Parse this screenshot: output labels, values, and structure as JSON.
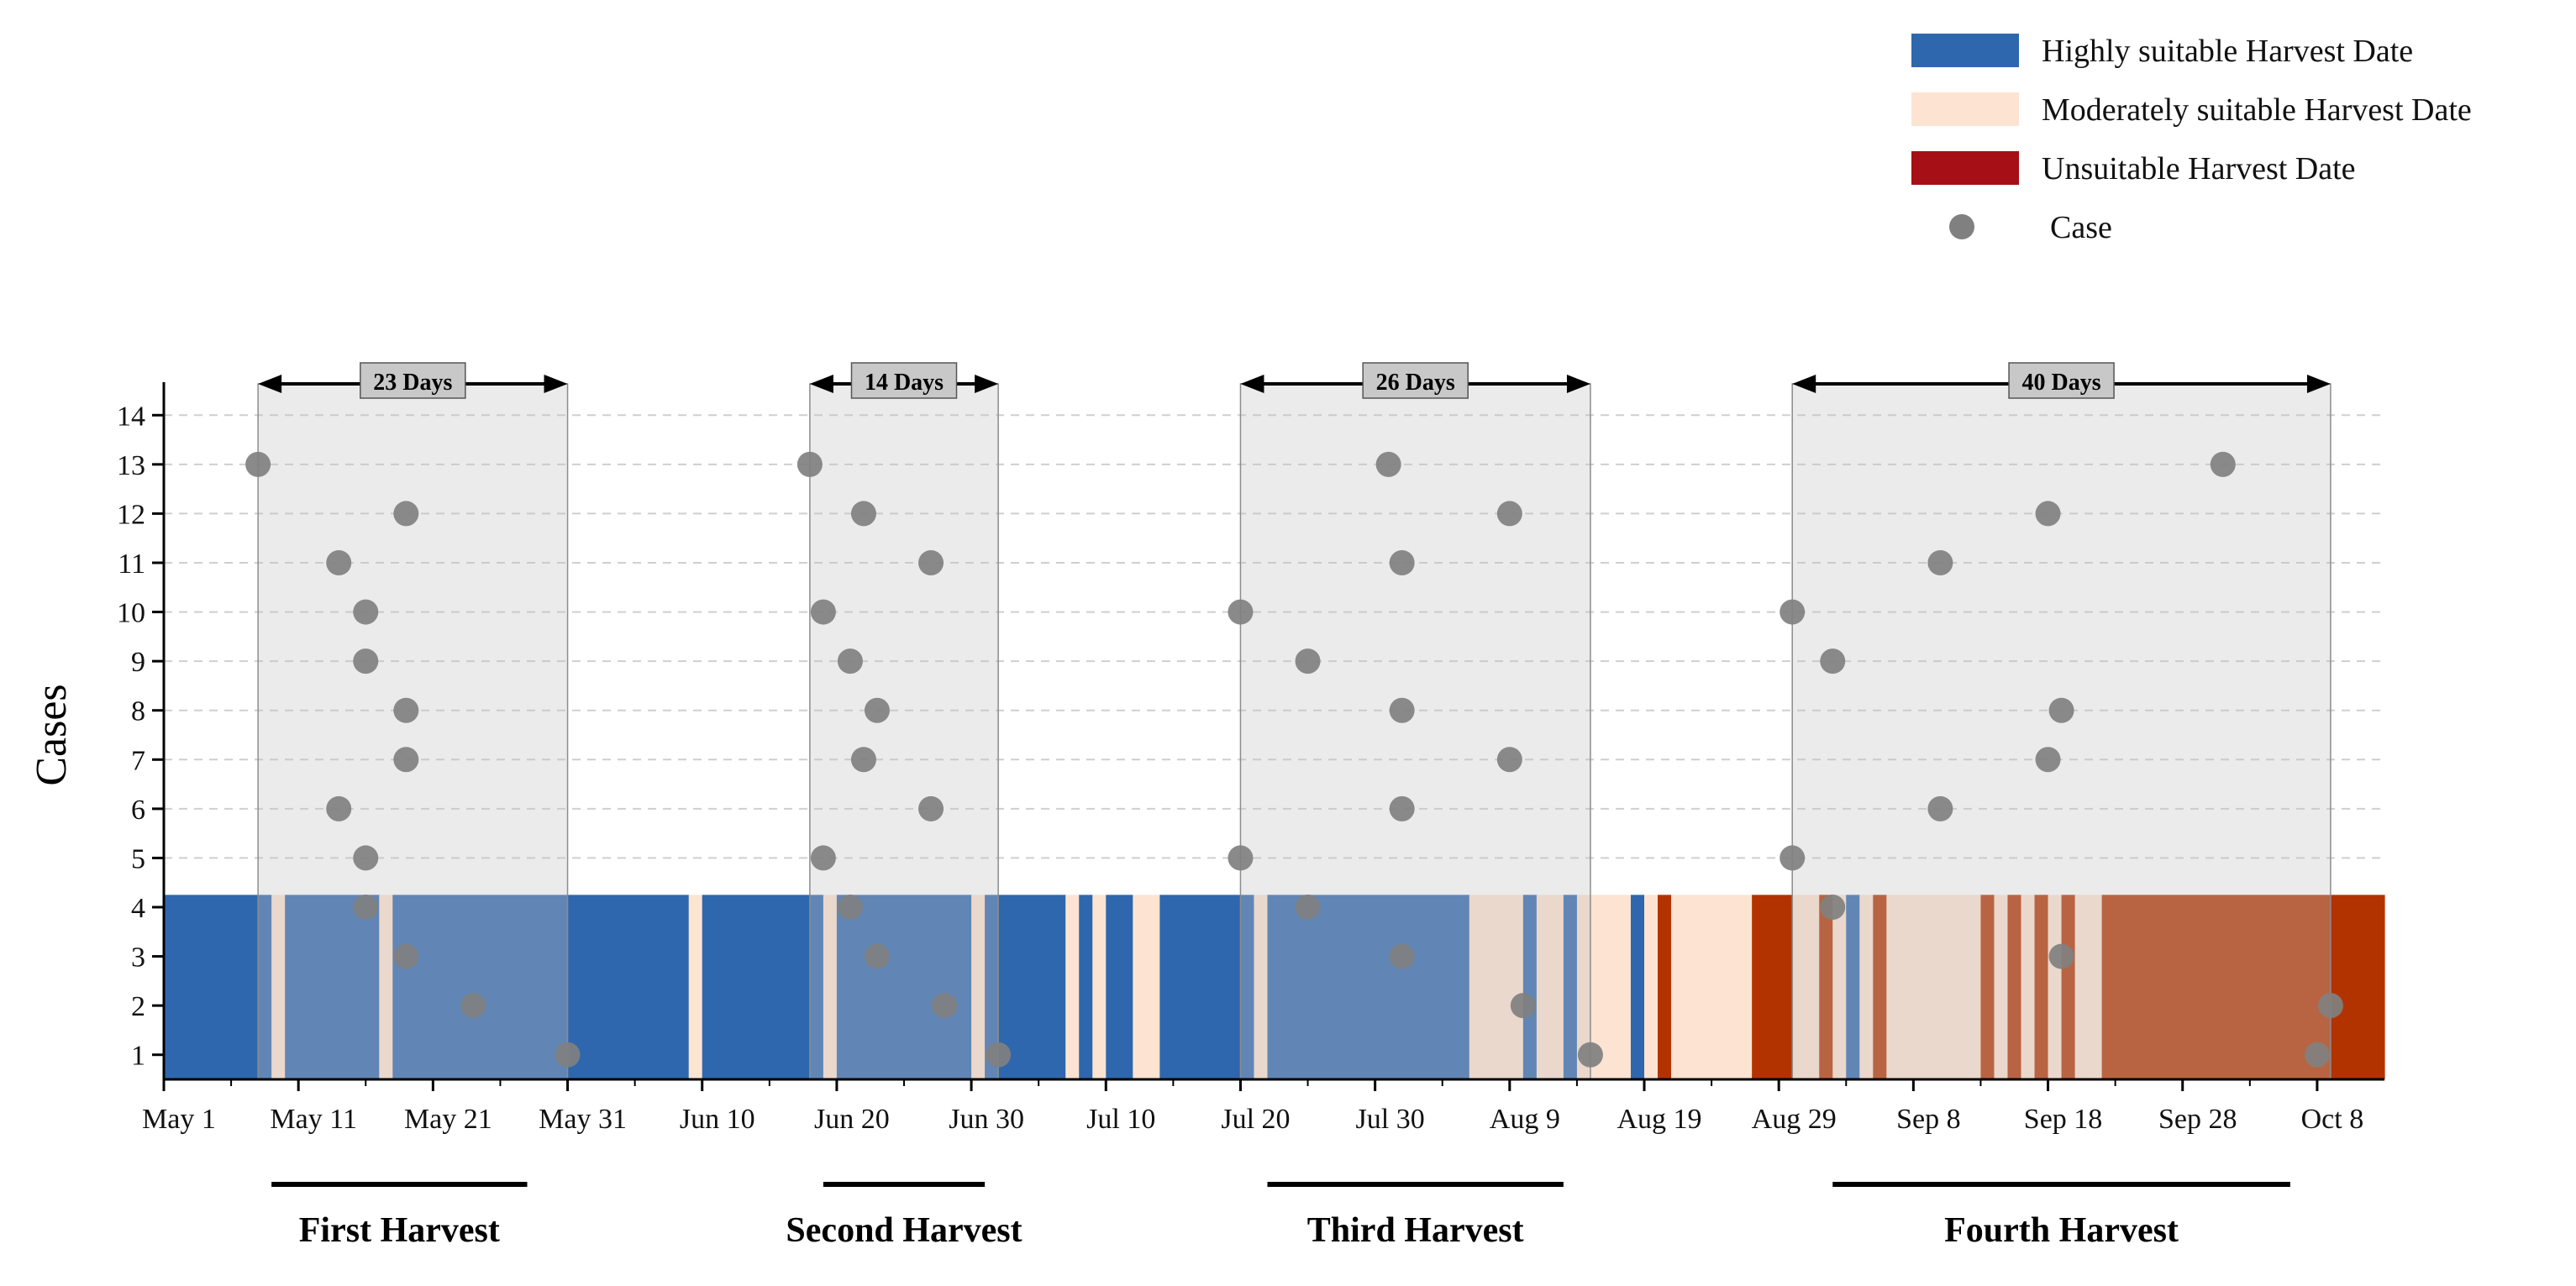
{
  "chart_data": {
    "type": "scatter",
    "ylabel": "Cases",
    "xlabel": "",
    "ylim": [
      0.5,
      14.5
    ],
    "yticks": [
      1,
      2,
      3,
      4,
      5,
      6,
      7,
      8,
      9,
      10,
      11,
      12,
      13,
      14
    ],
    "x_axis": {
      "start": "May 1",
      "end": "Oct 13",
      "tick_labels": [
        "May 1",
        "May 11",
        "May 21",
        "May 31",
        "Jun 10",
        "Jun 20",
        "Jun 30",
        "Jul 10",
        "Jul 20",
        "Jul 30",
        "Aug 9",
        "Aug 19",
        "Aug 29",
        "Sep 8",
        "Sep 18",
        "Sep 28",
        "Oct 8"
      ]
    },
    "grid": "horizontal dashed",
    "legend": {
      "placement": "top-right",
      "entries": [
        {
          "label": "Highly suitable Harvest Date",
          "color": "#2e67ad",
          "symbol": "rect"
        },
        {
          "label": "Moderately suitable Harvest Date",
          "color": "#fde3d1",
          "symbol": "rect"
        },
        {
          "label": "Unsuitable Harvest Date",
          "color": "#a50f15",
          "symbol": "rect"
        },
        {
          "label": "Case",
          "color": "#808080",
          "symbol": "circle"
        }
      ]
    },
    "suitability_strip": {
      "y_top": 4.25,
      "colors": {
        "high": "#2e67ad",
        "moderate": "#fde3d1",
        "unsuitable": "#b23300"
      },
      "segments": [
        {
          "start": "May 1",
          "end": "May 9",
          "class": "high"
        },
        {
          "start": "May 9",
          "end": "May 10",
          "class": "moderate"
        },
        {
          "start": "May 10",
          "end": "May 17",
          "class": "high"
        },
        {
          "start": "May 17",
          "end": "May 18",
          "class": "moderate"
        },
        {
          "start": "May 18",
          "end": "Jun 9",
          "class": "high"
        },
        {
          "start": "Jun 9",
          "end": "Jun 10",
          "class": "moderate"
        },
        {
          "start": "Jun 10",
          "end": "Jun 19",
          "class": "high"
        },
        {
          "start": "Jun 19",
          "end": "Jun 20",
          "class": "moderate"
        },
        {
          "start": "Jun 20",
          "end": "Jun 30",
          "class": "high"
        },
        {
          "start": "Jun 30",
          "end": "Jul 1",
          "class": "moderate"
        },
        {
          "start": "Jul 1",
          "end": "Jul 7",
          "class": "high"
        },
        {
          "start": "Jul 7",
          "end": "Jul 8",
          "class": "moderate"
        },
        {
          "start": "Jul 8",
          "end": "Jul 9",
          "class": "high"
        },
        {
          "start": "Jul 9",
          "end": "Jul 10",
          "class": "moderate"
        },
        {
          "start": "Jul 10",
          "end": "Jul 12",
          "class": "high"
        },
        {
          "start": "Jul 12",
          "end": "Jul 14",
          "class": "moderate"
        },
        {
          "start": "Jul 14",
          "end": "Jul 21",
          "class": "high"
        },
        {
          "start": "Jul 21",
          "end": "Jul 22",
          "class": "moderate"
        },
        {
          "start": "Jul 22",
          "end": "Aug 6",
          "class": "high"
        },
        {
          "start": "Aug 6",
          "end": "Aug 10",
          "class": "moderate"
        },
        {
          "start": "Aug 10",
          "end": "Aug 11",
          "class": "high"
        },
        {
          "start": "Aug 11",
          "end": "Aug 13",
          "class": "moderate"
        },
        {
          "start": "Aug 13",
          "end": "Aug 14",
          "class": "high"
        },
        {
          "start": "Aug 14",
          "end": "Aug 18",
          "class": "moderate"
        },
        {
          "start": "Aug 18",
          "end": "Aug 19",
          "class": "high"
        },
        {
          "start": "Aug 19",
          "end": "Aug 20",
          "class": "moderate"
        },
        {
          "start": "Aug 20",
          "end": "Aug 21",
          "class": "unsuitable"
        },
        {
          "start": "Aug 21",
          "end": "Aug 27",
          "class": "moderate"
        },
        {
          "start": "Aug 27",
          "end": "Aug 30",
          "class": "unsuitable"
        },
        {
          "start": "Aug 30",
          "end": "Sep 1",
          "class": "moderate"
        },
        {
          "start": "Sep 1",
          "end": "Sep 2",
          "class": "unsuitable"
        },
        {
          "start": "Sep 2",
          "end": "Sep 3",
          "class": "moderate"
        },
        {
          "start": "Sep 3",
          "end": "Sep 4",
          "class": "high"
        },
        {
          "start": "Sep 4",
          "end": "Sep 5",
          "class": "moderate"
        },
        {
          "start": "Sep 5",
          "end": "Sep 6",
          "class": "unsuitable"
        },
        {
          "start": "Sep 6",
          "end": "Sep 13",
          "class": "moderate"
        },
        {
          "start": "Sep 13",
          "end": "Sep 14",
          "class": "unsuitable"
        },
        {
          "start": "Sep 14",
          "end": "Sep 15",
          "class": "moderate"
        },
        {
          "start": "Sep 15",
          "end": "Sep 16",
          "class": "unsuitable"
        },
        {
          "start": "Sep 16",
          "end": "Sep 17",
          "class": "moderate"
        },
        {
          "start": "Sep 17",
          "end": "Sep 18",
          "class": "unsuitable"
        },
        {
          "start": "Sep 18",
          "end": "Sep 19",
          "class": "moderate"
        },
        {
          "start": "Sep 19",
          "end": "Sep 20",
          "class": "unsuitable"
        },
        {
          "start": "Sep 20",
          "end": "Sep 22",
          "class": "moderate"
        },
        {
          "start": "Sep 22",
          "end": "Oct 13",
          "class": "unsuitable"
        }
      ]
    },
    "harvest_windows": [
      {
        "start": "May 8",
        "end": "May 31",
        "duration_label": "23 Days",
        "name": "First Harvest",
        "underline": [
          "May 9",
          "May 28"
        ]
      },
      {
        "start": "Jun 18",
        "end": "Jul 2",
        "duration_label": "14 Days",
        "name": "Second Harvest",
        "underline": [
          "Jun 19",
          "Jul 1"
        ]
      },
      {
        "start": "Jul 20",
        "end": "Aug 15",
        "duration_label": "26 Days",
        "name": "Third Harvest",
        "underline": [
          "Jul 22",
          "Aug 13"
        ]
      },
      {
        "start": "Aug 30",
        "end": "Oct 9",
        "duration_label": "40 Days",
        "name": "Fourth Harvest",
        "underline": [
          "Sep 2",
          "Oct 6"
        ]
      }
    ],
    "series": [
      {
        "name": "Case",
        "points": [
          {
            "x": "May 8",
            "y": 13
          },
          {
            "x": "May 14",
            "y": 11
          },
          {
            "x": "May 14",
            "y": 6
          },
          {
            "x": "May 16",
            "y": 10
          },
          {
            "x": "May 16",
            "y": 9
          },
          {
            "x": "May 16",
            "y": 5
          },
          {
            "x": "May 16",
            "y": 4
          },
          {
            "x": "May 19",
            "y": 12
          },
          {
            "x": "May 19",
            "y": 8
          },
          {
            "x": "May 19",
            "y": 7
          },
          {
            "x": "May 19",
            "y": 3
          },
          {
            "x": "May 24",
            "y": 2
          },
          {
            "x": "May 31",
            "y": 1
          },
          {
            "x": "Jun 18",
            "y": 13
          },
          {
            "x": "Jun 19",
            "y": 10
          },
          {
            "x": "Jun 19",
            "y": 5
          },
          {
            "x": "Jun 21",
            "y": 9
          },
          {
            "x": "Jun 21",
            "y": 4
          },
          {
            "x": "Jun 22",
            "y": 12
          },
          {
            "x": "Jun 22",
            "y": 7
          },
          {
            "x": "Jun 23",
            "y": 8
          },
          {
            "x": "Jun 23",
            "y": 3
          },
          {
            "x": "Jun 27",
            "y": 11
          },
          {
            "x": "Jun 27",
            "y": 6
          },
          {
            "x": "Jun 28",
            "y": 2
          },
          {
            "x": "Jul 2",
            "y": 1
          },
          {
            "x": "Jul 20",
            "y": 10
          },
          {
            "x": "Jul 20",
            "y": 5
          },
          {
            "x": "Jul 25",
            "y": 9
          },
          {
            "x": "Jul 25",
            "y": 4
          },
          {
            "x": "Jul 31",
            "y": 13
          },
          {
            "x": "Aug 1",
            "y": 11
          },
          {
            "x": "Aug 1",
            "y": 8
          },
          {
            "x": "Aug 1",
            "y": 6
          },
          {
            "x": "Aug 1",
            "y": 3
          },
          {
            "x": "Aug 9",
            "y": 12
          },
          {
            "x": "Aug 9",
            "y": 7
          },
          {
            "x": "Aug 10",
            "y": 2
          },
          {
            "x": "Aug 15",
            "y": 1
          },
          {
            "x": "Aug 30",
            "y": 10
          },
          {
            "x": "Aug 30",
            "y": 5
          },
          {
            "x": "Sep 2",
            "y": 9
          },
          {
            "x": "Sep 2",
            "y": 4
          },
          {
            "x": "Sep 10",
            "y": 11
          },
          {
            "x": "Sep 10",
            "y": 6
          },
          {
            "x": "Sep 18",
            "y": 12
          },
          {
            "x": "Sep 18",
            "y": 7
          },
          {
            "x": "Sep 19",
            "y": 8
          },
          {
            "x": "Sep 19",
            "y": 3
          },
          {
            "x": "Oct 1",
            "y": 13
          },
          {
            "x": "Oct 8",
            "y": 1
          },
          {
            "x": "Oct 9",
            "y": 2
          }
        ]
      }
    ]
  }
}
